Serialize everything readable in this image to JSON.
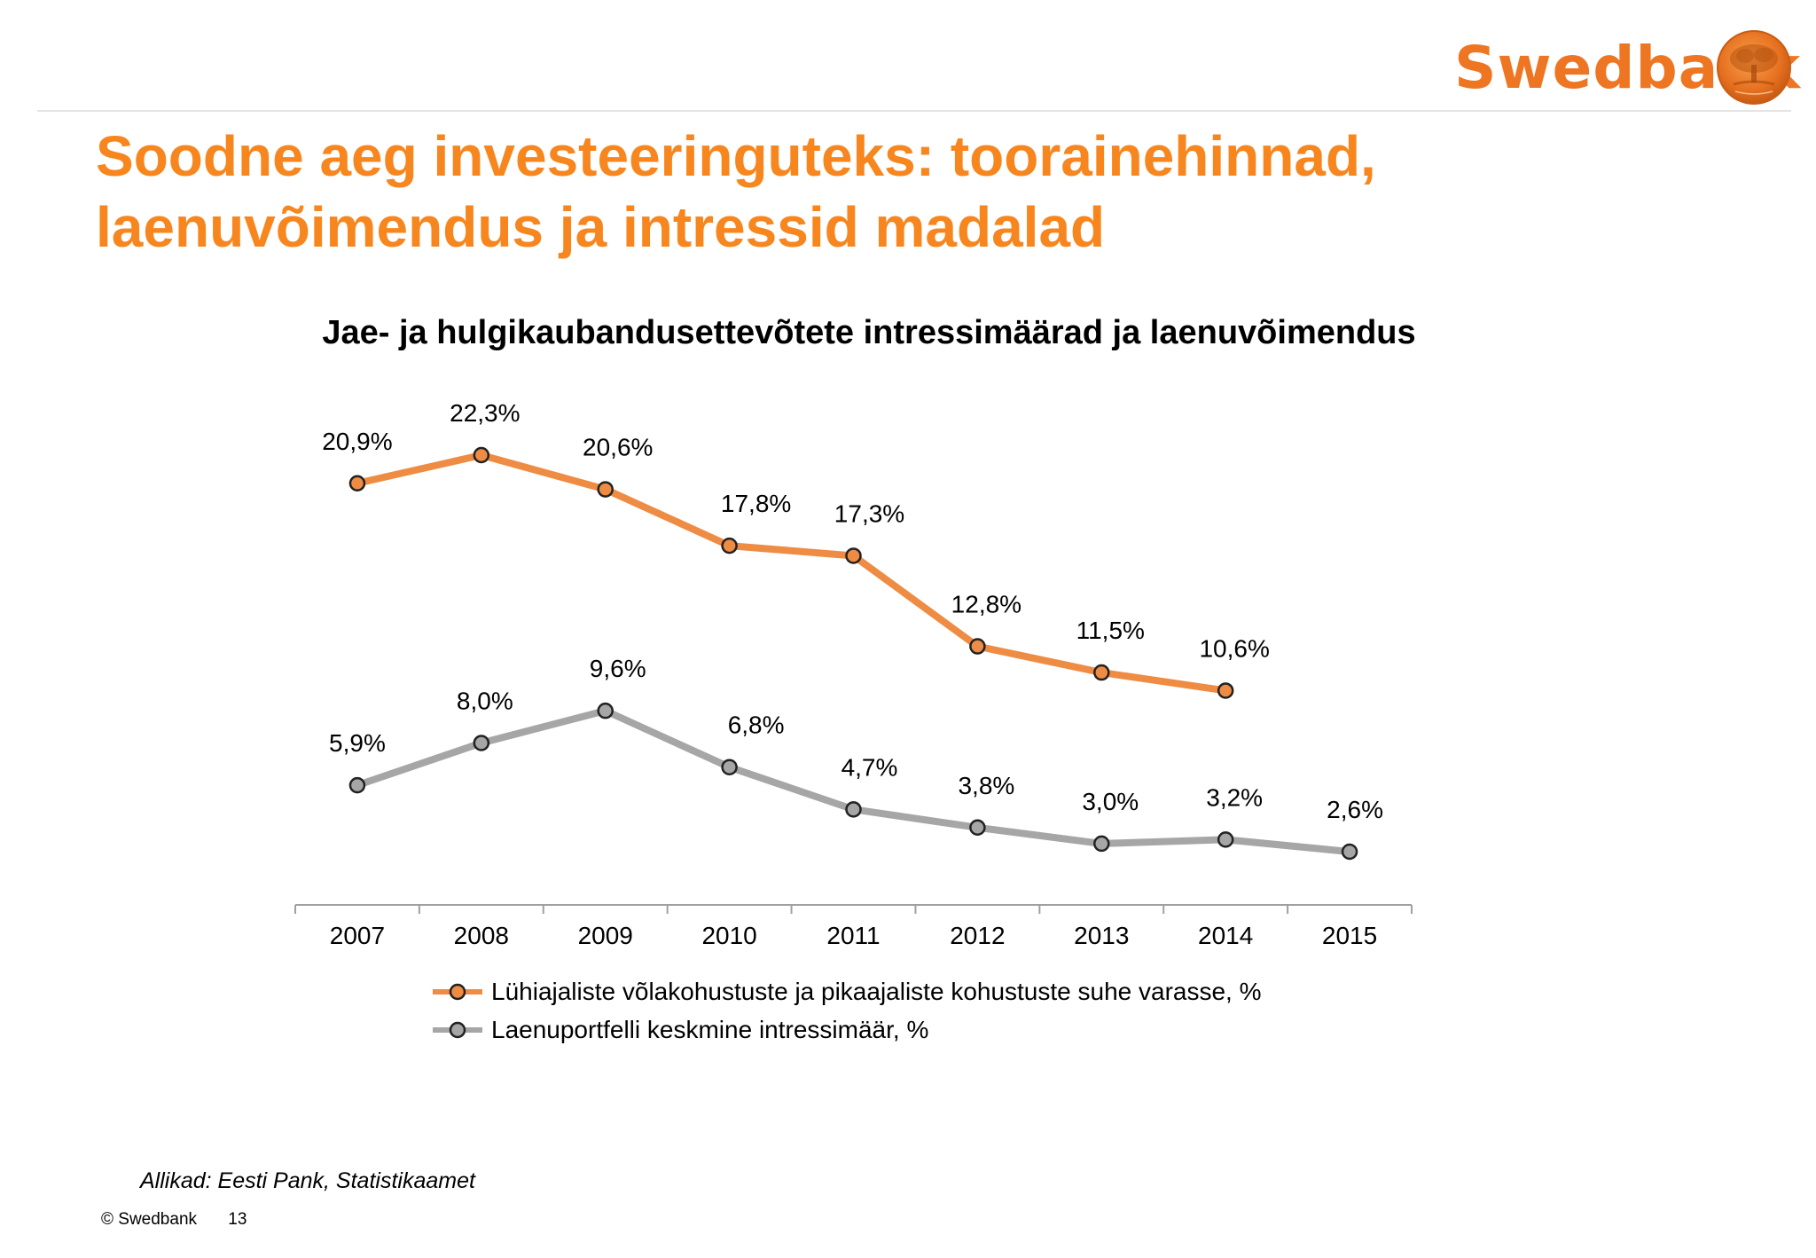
{
  "brand": {
    "logo_text": "Swedbank",
    "accent_color": "#ee7623"
  },
  "slide": {
    "title_line1": "Soodne aeg investeeringuteks: toorainehinnad,",
    "title_line2": "laenuvõimendus ja intressid madalad",
    "title_color": "#f7861e"
  },
  "chart_data": {
    "type": "line",
    "title": "Jae- ja hulgikaubandusettevõtete intressimäärad ja laenuvõimendus",
    "x": [
      "2007",
      "2008",
      "2009",
      "2010",
      "2011",
      "2012",
      "2013",
      "2014",
      "2015"
    ],
    "series": [
      {
        "name": "Lühiajaliste võlakohustuste ja pikaajaliste kohustuste suhe varasse, %",
        "color": "#ef8c44",
        "values": [
          20.9,
          22.3,
          20.6,
          17.8,
          17.3,
          12.8,
          11.5,
          10.6,
          null
        ],
        "labels": [
          "20,9%",
          "22,3%",
          "20,6%",
          "17,8%",
          "17,3%",
          "12,8%",
          "11,5%",
          "10,6%",
          null
        ]
      },
      {
        "name": "Laenuportfelli keskmine intressimäär, %",
        "color": "#a6a6a6",
        "values": [
          5.9,
          8.0,
          9.6,
          6.8,
          4.7,
          3.8,
          3.0,
          3.2,
          2.6
        ],
        "labels": [
          "5,9%",
          "8,0%",
          "9,6%",
          "6,8%",
          "4,7%",
          "3,8%",
          "3,0%",
          "3,2%",
          "2,6%"
        ]
      }
    ],
    "legend_position": "bottom",
    "grid": false,
    "y_axis_visible": false
  },
  "source_text": "Allikad: Eesti Pank, Statistikaamet",
  "footer": {
    "copyright": "© Swedbank",
    "page_number": "13"
  }
}
